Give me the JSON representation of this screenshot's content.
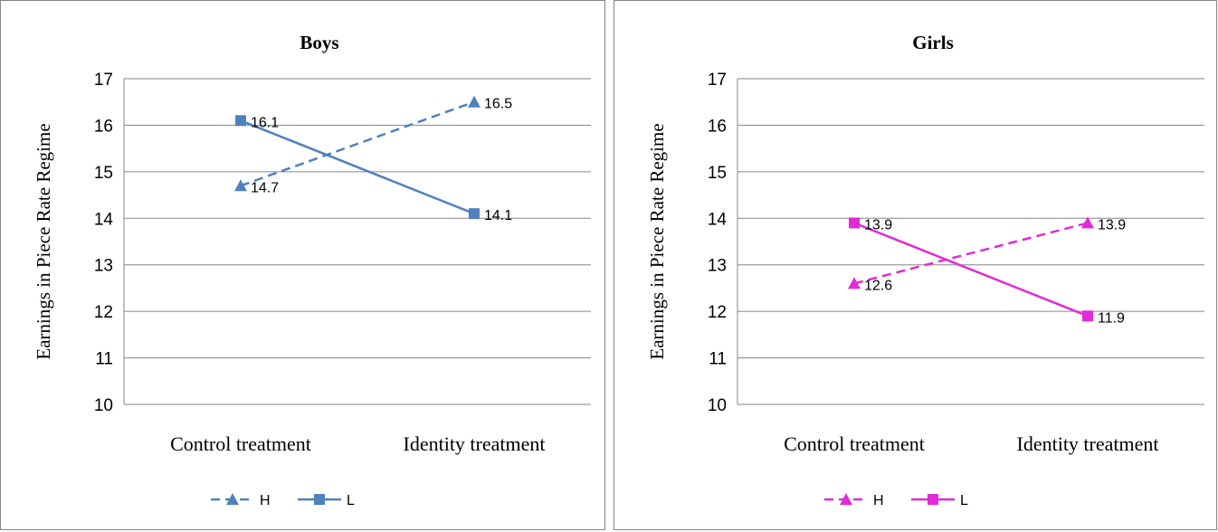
{
  "chart_data": [
    {
      "type": "line",
      "title": "Boys",
      "ylabel": "Earnings in Piece Rate Regime",
      "xlabel": "",
      "categories": [
        "Control treatment",
        "Identity treatment"
      ],
      "ylim": [
        10,
        17
      ],
      "yticks": [
        10,
        11,
        12,
        13,
        14,
        15,
        16,
        17
      ],
      "grid": true,
      "legend_position": "bottom",
      "color": "#4f81bd",
      "series": [
        {
          "name": "H",
          "values": [
            14.7,
            16.5
          ],
          "labels": [
            "14.7",
            "16.5"
          ],
          "line_style": "dashed",
          "marker": "triangle"
        },
        {
          "name": "L",
          "values": [
            16.1,
            14.1
          ],
          "labels": [
            "16.1",
            "14.1"
          ],
          "line_style": "solid",
          "marker": "square"
        }
      ]
    },
    {
      "type": "line",
      "title": "Girls",
      "ylabel": "Earnings in Piece Rate Regime",
      "xlabel": "",
      "categories": [
        "Control treatment",
        "Identity treatment"
      ],
      "ylim": [
        10,
        17
      ],
      "yticks": [
        10,
        11,
        12,
        13,
        14,
        15,
        16,
        17
      ],
      "grid": true,
      "legend_position": "bottom",
      "color": "#e02bd6",
      "series": [
        {
          "name": "H",
          "values": [
            12.6,
            13.9
          ],
          "labels": [
            "12.6",
            "13.9"
          ],
          "line_style": "dashed",
          "marker": "triangle"
        },
        {
          "name": "L",
          "values": [
            13.9,
            11.9
          ],
          "labels": [
            "13.9",
            "11.9"
          ],
          "line_style": "solid",
          "marker": "square"
        }
      ]
    }
  ]
}
